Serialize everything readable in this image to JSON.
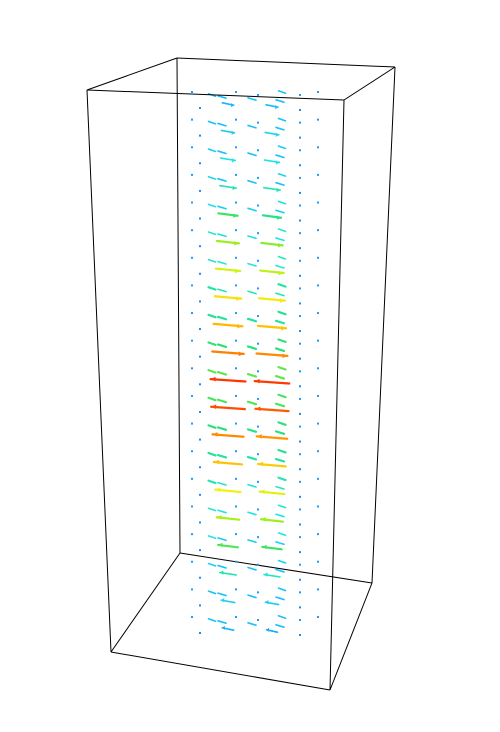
{
  "scene": {
    "type": "3d-vector-field",
    "description_hidden": false,
    "background_color": "#ffffff",
    "box_color": "#000000",
    "colormap": [
      "#1e6fff",
      "#17b6ff",
      "#22e8e0",
      "#27e07a",
      "#9bef1d",
      "#f4f20f",
      "#ffb300",
      "#ff6a00",
      "#ff1a00"
    ],
    "magnitude_range": [
      0,
      1
    ],
    "layers": 20,
    "columns_front": 2,
    "field": [
      {
        "layer": 0,
        "front_left": 0.12,
        "front_right": 0.14,
        "dir": 1
      },
      {
        "layer": 1,
        "front_left": 0.18,
        "front_right": 0.2,
        "dir": 1
      },
      {
        "layer": 2,
        "front_left": 0.24,
        "front_right": 0.24,
        "dir": 1
      },
      {
        "layer": 3,
        "front_left": 0.3,
        "front_right": 0.3,
        "dir": 1
      },
      {
        "layer": 4,
        "front_left": 0.4,
        "front_right": 0.36,
        "dir": 1
      },
      {
        "layer": 5,
        "front_left": 0.5,
        "front_right": 0.48,
        "dir": 1
      },
      {
        "layer": 6,
        "front_left": 0.58,
        "front_right": 0.55,
        "dir": 1
      },
      {
        "layer": 7,
        "front_left": 0.66,
        "front_right": 0.64,
        "dir": 1
      },
      {
        "layer": 8,
        "front_left": 0.74,
        "front_right": 0.72,
        "dir": 1
      },
      {
        "layer": 9,
        "front_left": 0.84,
        "front_right": 0.82,
        "dir": 1
      },
      {
        "layer": 10,
        "front_left": 0.96,
        "front_right": 0.95,
        "dir": -1
      },
      {
        "layer": 11,
        "front_left": 0.92,
        "front_right": 0.9,
        "dir": -1
      },
      {
        "layer": 12,
        "front_left": 0.82,
        "front_right": 0.8,
        "dir": -1
      },
      {
        "layer": 13,
        "front_left": 0.72,
        "front_right": 0.7,
        "dir": -1
      },
      {
        "layer": 14,
        "front_left": 0.62,
        "front_right": 0.6,
        "dir": -1
      },
      {
        "layer": 15,
        "front_left": 0.52,
        "front_right": 0.5,
        "dir": -1
      },
      {
        "layer": 16,
        "front_left": 0.42,
        "front_right": 0.4,
        "dir": -1
      },
      {
        "layer": 17,
        "front_left": 0.3,
        "front_right": 0.28,
        "dir": -1
      },
      {
        "layer": 18,
        "front_left": 0.2,
        "front_right": 0.18,
        "dir": -1
      },
      {
        "layer": 19,
        "front_left": 0.12,
        "front_right": 0.1,
        "dir": -1
      }
    ]
  }
}
